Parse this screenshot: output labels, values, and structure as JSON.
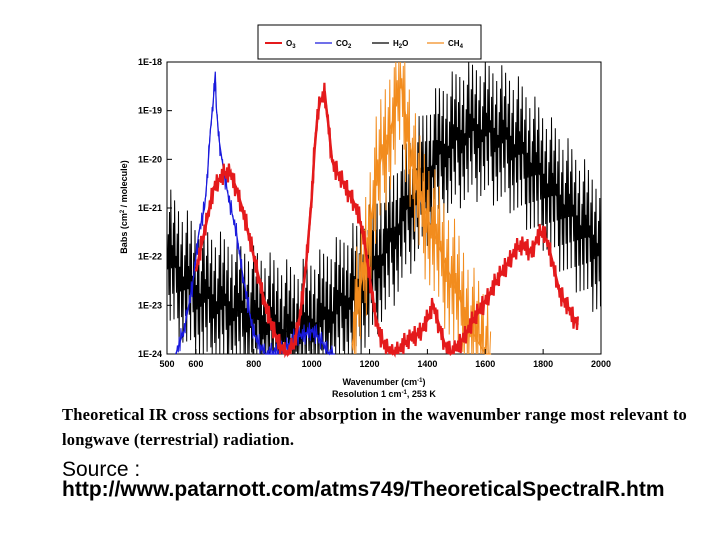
{
  "chart_data": {
    "type": "line",
    "xlabel": "Wavenumber (cm",
    "xlabel_sup": "-1",
    "xlabel_end": ")",
    "resolution_label": "Resolution 1 cm",
    "resolution_sup": "-1",
    "resolution_end": ", 253 K",
    "ylabel": "Babs (cm",
    "ylabel_sup": "2",
    "ylabel_end": " / molecule)",
    "xlim": [
      500,
      2000
    ],
    "ylim_log10": [
      -24,
      -18
    ],
    "x_ticks": [
      500,
      600,
      800,
      1000,
      1200,
      1400,
      1600,
      1800,
      2000
    ],
    "y_ticks": [
      "1E-18",
      "1E-19",
      "1E-20",
      "1E-21",
      "1E-22",
      "1E-23",
      "1E-24"
    ],
    "legend_position": "top",
    "series": [
      {
        "name": "O",
        "sub": "3",
        "color": "#e41a1c",
        "x": [
          600,
          640,
          660,
          680,
          700,
          720,
          740,
          760,
          780,
          800,
          820,
          840,
          860,
          880,
          900,
          920,
          940,
          960,
          980,
          1000,
          1010,
          1020,
          1030,
          1040,
          1045,
          1050,
          1060,
          1070,
          1080,
          1090,
          1100,
          1120,
          1140,
          1160,
          1180,
          1200,
          1220,
          1240,
          1260,
          1280,
          1300,
          1320,
          1340,
          1360,
          1380,
          1400,
          1420,
          1440,
          1460,
          1480,
          1500,
          1520,
          1540,
          1560,
          1580,
          1600,
          1620,
          1640,
          1660,
          1680,
          1700,
          1720,
          1740,
          1760,
          1780,
          1800,
          1820,
          1840,
          1860,
          1880,
          1900,
          1920
        ],
        "log10": [
          -22.3,
          -21.2,
          -20.6,
          -20.4,
          -20.3,
          -20.3,
          -20.6,
          -21.0,
          -21.5,
          -22.0,
          -22.5,
          -23.0,
          -23.4,
          -23.7,
          -23.9,
          -24.0,
          -23.8,
          -23.2,
          -22.2,
          -20.8,
          -19.8,
          -19.1,
          -18.8,
          -18.7,
          -18.6,
          -18.9,
          -19.4,
          -20.0,
          -20.2,
          -20.3,
          -20.4,
          -20.6,
          -20.8,
          -21.1,
          -21.6,
          -22.4,
          -23.2,
          -23.7,
          -23.9,
          -24.0,
          -23.9,
          -23.8,
          -23.7,
          -23.6,
          -23.5,
          -23.3,
          -23.0,
          -23.4,
          -23.8,
          -24.0,
          -23.9,
          -23.7,
          -23.5,
          -23.3,
          -23.1,
          -22.9,
          -22.7,
          -22.5,
          -22.3,
          -22.1,
          -21.9,
          -21.8,
          -21.8,
          -21.9,
          -21.6,
          -21.5,
          -21.8,
          -22.3,
          -22.8,
          -23.0,
          -23.2,
          -23.4
        ]
      },
      {
        "name": "CO",
        "sub": "2",
        "color": "#1a1adc",
        "x": [
          530,
          560,
          590,
          610,
          630,
          640,
          650,
          660,
          667,
          670,
          680,
          700,
          720,
          740,
          760,
          780,
          800,
          820,
          840,
          880,
          940,
          1000,
          1040,
          1060,
          1080
        ],
        "log10": [
          -24.0,
          -23.5,
          -22.5,
          -21.5,
          -21.0,
          -20.3,
          -19.4,
          -18.8,
          -18.2,
          -18.9,
          -19.6,
          -20.4,
          -21.0,
          -21.5,
          -22.3,
          -23.0,
          -23.6,
          -23.8,
          -24.0,
          -24.0,
          -23.7,
          -23.5,
          -23.8,
          -24.0,
          -24.0
        ]
      },
      {
        "name": "H",
        "sub": "2",
        "name_end": "O",
        "color": "#000000",
        "x": [
          500,
          540,
          580,
          620,
          660,
          700,
          740,
          780,
          820,
          860,
          900,
          940,
          980,
          1000,
          1040,
          1080,
          1120,
          1160,
          1200,
          1240,
          1280,
          1320,
          1360,
          1400,
          1440,
          1480,
          1520,
          1560,
          1600,
          1640,
          1680,
          1720,
          1760,
          1800,
          1840,
          1880,
          1920,
          1960,
          2000
        ],
        "log10": [
          -22.0,
          -22.3,
          -22.6,
          -22.8,
          -22.9,
          -23.0,
          -23.1,
          -23.2,
          -23.3,
          -23.4,
          -23.5,
          -23.6,
          -23.5,
          -23.4,
          -23.3,
          -23.1,
          -22.9,
          -22.7,
          -22.4,
          -22.0,
          -21.6,
          -21.1,
          -20.7,
          -20.3,
          -19.9,
          -19.7,
          -19.5,
          -19.4,
          -19.4,
          -19.5,
          -19.6,
          -19.8,
          -20.1,
          -20.4,
          -20.7,
          -21.0,
          -21.3,
          -21.6,
          -21.8
        ]
      },
      {
        "name": "CH",
        "sub": "4",
        "color": "#f28c1e",
        "x": [
          1140,
          1170,
          1200,
          1220,
          1240,
          1260,
          1280,
          1300,
          1310,
          1320,
          1340,
          1360,
          1380,
          1400,
          1420,
          1440,
          1460,
          1480,
          1500,
          1520,
          1540,
          1560,
          1580,
          1600,
          1620
        ],
        "log10": [
          -23.8,
          -22.6,
          -21.4,
          -20.6,
          -20.0,
          -19.6,
          -19.2,
          -18.6,
          -18.5,
          -18.9,
          -19.7,
          -20.5,
          -20.9,
          -21.2,
          -21.5,
          -21.8,
          -22.1,
          -22.4,
          -22.7,
          -23.0,
          -23.3,
          -23.6,
          -23.8,
          -24.0,
          -24.0
        ]
      }
    ]
  },
  "caption": "Theoretical IR cross sections for absorption in the wavenumber range most relevant to longwave (terrestrial) radiation.",
  "source": {
    "label": "Source :",
    "url": "http://www.patarnott.com/atms749/TheoreticalSpectralR.htm"
  }
}
